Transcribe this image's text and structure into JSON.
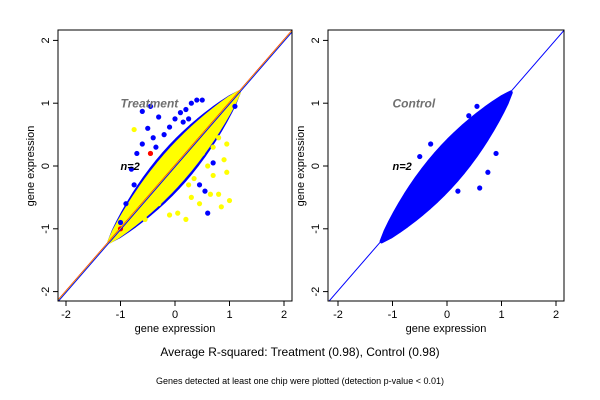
{
  "chart_data": [
    {
      "type": "scatter",
      "title": "Treatment",
      "annotation": "n=2",
      "xlabel": "gene expression",
      "ylabel": "gene expression",
      "xlim": [
        -2.15,
        2.15
      ],
      "ylim": [
        -2.15,
        2.15
      ],
      "xticks": [
        "-2",
        "-1",
        "0",
        "1",
        "2"
      ],
      "yticks": [
        "-2",
        "-1",
        "0",
        "1",
        "2"
      ],
      "grid": false,
      "colors": {
        "series1": "#0000ff",
        "series2": "#ffff00",
        "series3": "#ff0000",
        "title": "#707070"
      },
      "reference_lines": [
        {
          "slope": 1,
          "intercept": 0,
          "color": "#ff0000"
        },
        {
          "slope": 1,
          "intercept": 0,
          "color": "#ffff00"
        },
        {
          "slope": 1,
          "intercept": 0,
          "color": "#0000ff"
        }
      ],
      "series": [
        {
          "color": "#0000ff",
          "points": [
            [
              -0.6,
              0.87
            ],
            [
              -0.45,
              0.95
            ],
            [
              -0.3,
              0.78
            ],
            [
              -0.1,
              0.62
            ],
            [
              0.0,
              0.75
            ],
            [
              0.1,
              0.85
            ],
            [
              0.2,
              0.9
            ],
            [
              0.3,
              1.0
            ],
            [
              0.4,
              1.05
            ],
            [
              0.5,
              1.05
            ],
            [
              -0.5,
              0.6
            ],
            [
              -0.4,
              0.45
            ],
            [
              -0.2,
              0.5
            ],
            [
              -0.7,
              0.2
            ],
            [
              -0.8,
              -0.05
            ],
            [
              -0.75,
              -0.3
            ],
            [
              -0.9,
              -0.6
            ],
            [
              -1.0,
              -0.9
            ],
            [
              0.6,
              -0.75
            ],
            [
              0.55,
              -0.4
            ],
            [
              0.45,
              -0.3
            ],
            [
              0.7,
              0.05
            ],
            [
              1.1,
              0.95
            ],
            [
              -0.6,
              0.35
            ],
            [
              0.15,
              0.7
            ],
            [
              0.25,
              0.75
            ],
            [
              -0.35,
              0.3
            ]
          ]
        },
        {
          "color": "#ffff00",
          "points": [
            [
              -0.75,
              0.58
            ],
            [
              -0.45,
              0.2
            ],
            [
              0.5,
              0.2
            ],
            [
              0.7,
              0.3
            ],
            [
              0.8,
              0.45
            ],
            [
              0.95,
              0.35
            ],
            [
              0.9,
              0.1
            ],
            [
              0.95,
              -0.1
            ],
            [
              0.7,
              -0.15
            ],
            [
              0.65,
              -0.45
            ],
            [
              0.8,
              -0.45
            ],
            [
              1.0,
              -0.55
            ],
            [
              0.85,
              -0.65
            ],
            [
              0.45,
              -0.6
            ],
            [
              0.3,
              -0.5
            ],
            [
              0.05,
              -0.75
            ],
            [
              0.2,
              -0.85
            ],
            [
              -0.1,
              -0.78
            ],
            [
              -0.3,
              -0.6
            ],
            [
              -0.55,
              -0.85
            ],
            [
              0.25,
              -0.3
            ],
            [
              0.35,
              -0.2
            ],
            [
              0.6,
              0.0
            ]
          ]
        },
        {
          "color": "#ff0000",
          "points": [
            [
              -0.45,
              0.2
            ],
            [
              -1.0,
              -1.0
            ]
          ]
        }
      ]
    },
    {
      "type": "scatter",
      "title": "Control",
      "annotation": "n=2",
      "xlabel": "gene expression",
      "ylabel": "gene expression",
      "xlim": [
        -2.15,
        2.15
      ],
      "ylim": [
        -2.15,
        2.15
      ],
      "xticks": [
        "-2",
        "-1",
        "0",
        "1",
        "2"
      ],
      "yticks": [
        "-2",
        "-1",
        "0",
        "1",
        "2"
      ],
      "grid": false,
      "colors": {
        "series1": "#0000ff",
        "title": "#707070"
      },
      "reference_lines": [
        {
          "slope": 1,
          "intercept": 0,
          "color": "#0000ff"
        }
      ],
      "series": [
        {
          "color": "#0000ff",
          "points": [
            [
              0.55,
              0.95
            ],
            [
              0.4,
              0.8
            ],
            [
              -0.3,
              0.35
            ],
            [
              -0.5,
              0.15
            ],
            [
              0.6,
              -0.35
            ],
            [
              0.75,
              -0.1
            ],
            [
              0.9,
              0.2
            ],
            [
              -0.6,
              -0.4
            ],
            [
              0.2,
              -0.4
            ],
            [
              1.1,
              1.1
            ]
          ]
        }
      ]
    }
  ],
  "footer": {
    "summary": "Average R-squared: Treatment (0.98), Control (0.98)",
    "note": "Genes detected at least one chip were plotted (detection p-value < 0.01)"
  }
}
